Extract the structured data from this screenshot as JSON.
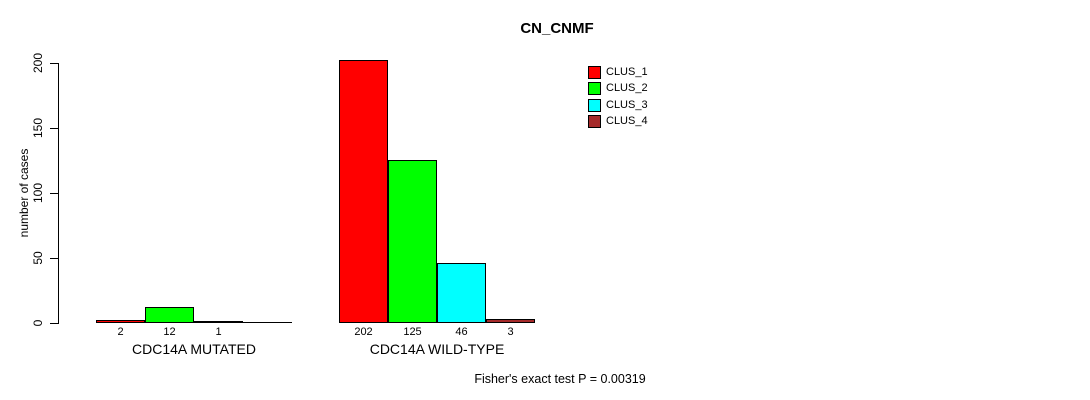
{
  "title": "CN_CNMF",
  "footer": "Fisher's exact test P = 0.00319",
  "y_axis": {
    "label": "number of cases",
    "ticks": [
      "0",
      "50",
      "100",
      "150",
      "200"
    ]
  },
  "legend": {
    "items": [
      {
        "label": "CLUS_1",
        "color": "#FF0000"
      },
      {
        "label": "CLUS_2",
        "color": "#00FF00"
      },
      {
        "label": "CLUS_3",
        "color": "#00FFFF"
      },
      {
        "label": "CLUS_4",
        "color": "#A52A2A"
      }
    ]
  },
  "chart_data": {
    "type": "bar",
    "title": "CN_CNMF",
    "xlabel": "",
    "ylabel": "number of cases",
    "ylim": [
      0,
      200
    ],
    "yticks": [
      0,
      50,
      100,
      150,
      200
    ],
    "grid": false,
    "legend_position": "top-right",
    "categories": [
      "CDC14A MUTATED",
      "CDC14A WILD-TYPE"
    ],
    "series": [
      {
        "name": "CLUS_1",
        "color": "#FF0000",
        "values": [
          2,
          202
        ]
      },
      {
        "name": "CLUS_2",
        "color": "#00FF00",
        "values": [
          12,
          125
        ]
      },
      {
        "name": "CLUS_3",
        "color": "#00FFFF",
        "values": [
          1,
          46
        ]
      },
      {
        "name": "CLUS_4",
        "color": "#A52A2A",
        "values": [
          0,
          3
        ]
      }
    ],
    "bar_value_labels": [
      [
        "2",
        "12",
        "1",
        null
      ],
      [
        "202",
        "125",
        "46",
        "3"
      ]
    ],
    "annotation": "Fisher's exact test P = 0.00319"
  }
}
